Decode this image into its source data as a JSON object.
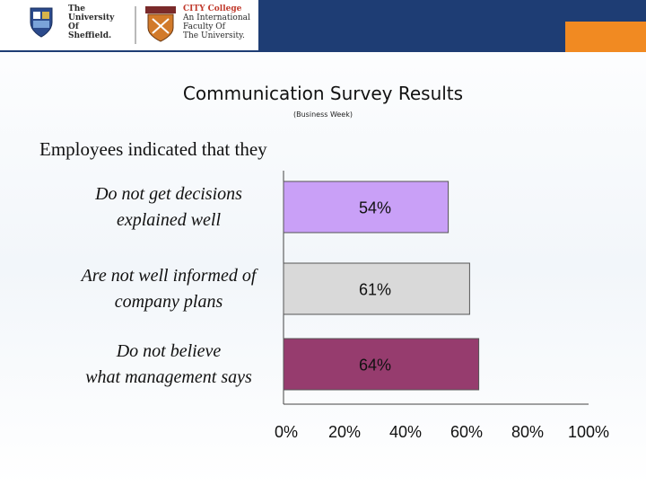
{
  "header": {
    "university": "The\nUniversity\nOf\nSheffield.",
    "college_name": "CITY College",
    "college_desc": "An International\nFaculty Of\nThe University.",
    "colors": {
      "top_bar": "#1e3d74",
      "accent": "#f18a22"
    }
  },
  "slide": {
    "title": "Communication Survey Results",
    "subtitle": "(Business Week)",
    "intro": "Employees indicated that they"
  },
  "chart_data": {
    "type": "bar",
    "orientation": "horizontal",
    "categories": [
      [
        "Do not get decisions",
        "explained well"
      ],
      [
        "Are not well informed of",
        "company plans"
      ],
      [
        "Do not believe",
        "what management says"
      ]
    ],
    "values": [
      54,
      61,
      64
    ],
    "data_labels": [
      "54%",
      "61%",
      "64%"
    ],
    "xlim": [
      0,
      100
    ],
    "x_ticks": [
      "0%",
      "20%",
      "40%",
      "60%",
      "80%",
      "100%"
    ],
    "grid": false,
    "legend": "none",
    "colors": [
      "#c9a0f7",
      "#d9d9d9",
      "#963c6e"
    ]
  }
}
